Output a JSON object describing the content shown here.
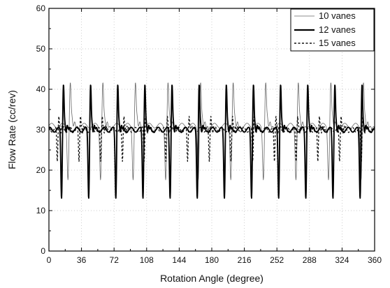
{
  "chart_data": {
    "type": "line",
    "xlabel": "Rotation Angle (degree)",
    "ylabel": "Flow Rate (cc/rev)",
    "xlim": [
      0,
      360
    ],
    "ylim": [
      0,
      60
    ],
    "xticks": [
      0,
      36,
      72,
      108,
      144,
      180,
      216,
      252,
      288,
      324,
      360
    ],
    "yticks": [
      0,
      10,
      20,
      30,
      40,
      50,
      60
    ],
    "grid": true,
    "grid_style": "dotted",
    "legend_position": "top-right",
    "series": [
      {
        "name": "10 vanes",
        "style": "thin-solid",
        "color": "#666666",
        "vane_count": 10,
        "baseline": 31,
        "peak_max": 42,
        "trough_min": 18
      },
      {
        "name": "12 vanes",
        "style": "thick-solid",
        "color": "#000000",
        "vane_count": 12,
        "baseline": 30,
        "peak_max": 42,
        "trough_min": 13
      },
      {
        "name": "15 vanes",
        "style": "dashed",
        "color": "#111111",
        "vane_count": 15,
        "baseline": 30,
        "peak_max": 34,
        "trough_min": 22
      }
    ]
  }
}
